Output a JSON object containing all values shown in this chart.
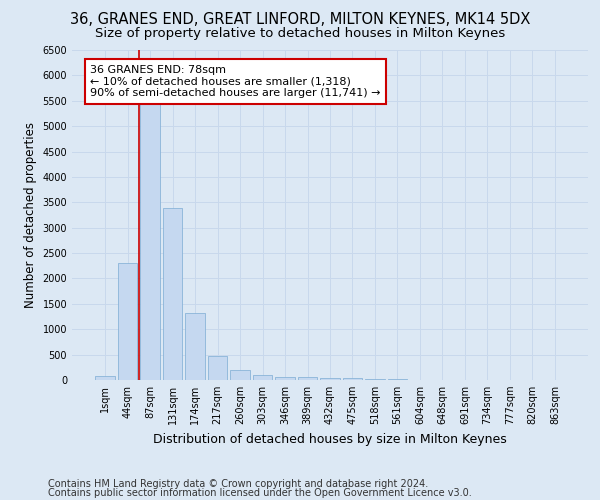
{
  "title": "36, GRANES END, GREAT LINFORD, MILTON KEYNES, MK14 5DX",
  "subtitle": "Size of property relative to detached houses in Milton Keynes",
  "xlabel": "Distribution of detached houses by size in Milton Keynes",
  "ylabel": "Number of detached properties",
  "footer_line1": "Contains HM Land Registry data © Crown copyright and database right 2024.",
  "footer_line2": "Contains public sector information licensed under the Open Government Licence v3.0.",
  "categories": [
    "1sqm",
    "44sqm",
    "87sqm",
    "131sqm",
    "174sqm",
    "217sqm",
    "260sqm",
    "303sqm",
    "346sqm",
    "389sqm",
    "432sqm",
    "475sqm",
    "518sqm",
    "561sqm",
    "604sqm",
    "648sqm",
    "691sqm",
    "734sqm",
    "777sqm",
    "820sqm",
    "863sqm"
  ],
  "values": [
    75,
    2300,
    5450,
    3380,
    1320,
    480,
    200,
    90,
    65,
    55,
    40,
    30,
    20,
    10,
    5,
    3,
    2,
    1,
    1,
    0,
    0
  ],
  "bar_color": "#c5d8f0",
  "bar_edge_color": "#8ab4d8",
  "vline_color": "#cc0000",
  "annotation_text": "36 GRANES END: 78sqm\n← 10% of detached houses are smaller (1,318)\n90% of semi-detached houses are larger (11,741) →",
  "annotation_box_facecolor": "#ffffff",
  "annotation_box_edgecolor": "#cc0000",
  "ylim": [
    0,
    6500
  ],
  "yticks": [
    0,
    500,
    1000,
    1500,
    2000,
    2500,
    3000,
    3500,
    4000,
    4500,
    5000,
    5500,
    6000,
    6500
  ],
  "grid_color": "#c8d8ec",
  "background_color": "#dce8f4",
  "title_fontsize": 10.5,
  "subtitle_fontsize": 9.5,
  "ylabel_fontsize": 8.5,
  "xlabel_fontsize": 9,
  "tick_fontsize": 7,
  "annot_fontsize": 8,
  "footer_fontsize": 7
}
